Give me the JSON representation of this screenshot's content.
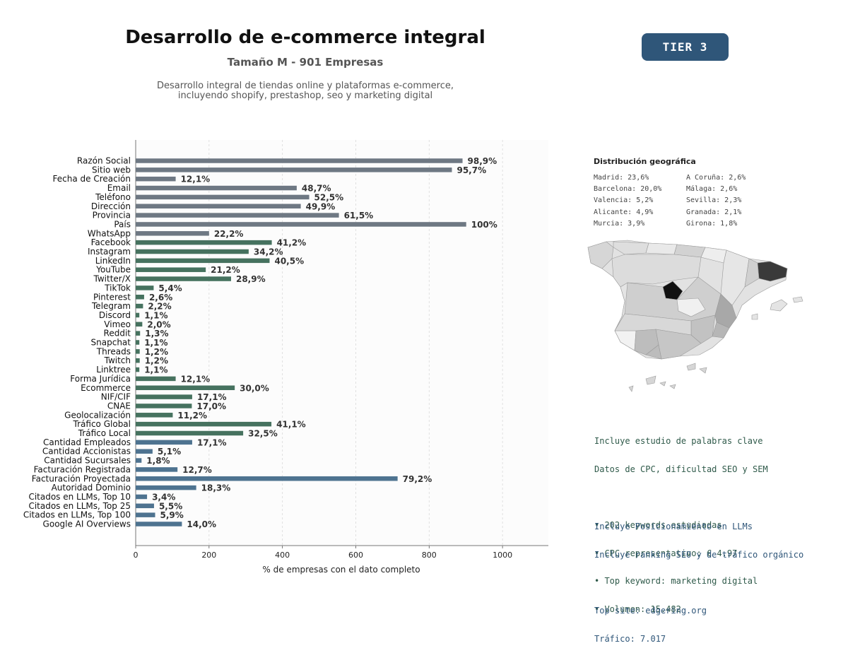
{
  "header": {
    "title": "Desarrollo de e-commerce integral",
    "subtitle": "Tamaño M - 901 Empresas",
    "description_line1": "Desarrollo integral de tiendas online y plataformas e-commerce,",
    "description_line2": "incluyendo shopify, prestashop, seo y marketing digital",
    "tier": "TIER 3"
  },
  "colors": {
    "identity": "#6e7883",
    "social": "#46725f",
    "business": "#4e7390",
    "badge": "#2f5679",
    "background_plot": "#fcfcfc"
  },
  "chart_data": {
    "type": "bar",
    "orientation": "horizontal",
    "xlabel": "% de empresas con el dato completo",
    "xlim": [
      0,
      1125
    ],
    "xticks": [
      0,
      200,
      400,
      600,
      800,
      1000
    ],
    "grid": "x-dashed",
    "categories": [
      "Razón Social",
      "Sitio web",
      "Fecha de Creación",
      "Email",
      "Teléfono",
      "Dirección",
      "Provincia",
      "País",
      "WhatsApp",
      "Facebook",
      "Instagram",
      "LinkedIn",
      "YouTube",
      "Twitter/X",
      "TikTok",
      "Pinterest",
      "Telegram",
      "Discord",
      "Vimeo",
      "Reddit",
      "Snapchat",
      "Threads",
      "Twitch",
      "Linktree",
      "Forma Jurídica",
      "Ecommerce",
      "NIF/CIF",
      "CNAE",
      "Geolocalización",
      "Tráfico Global",
      "Tráfico Local",
      "Cantidad Empleados",
      "Cantidad Accionistas",
      "Cantidad Sucursales",
      "Facturación Registrada",
      "Facturación Proyectada",
      "Autoridad Dominio",
      "Citados en LLMs, Top 10",
      "Citados en LLMs, Top 25",
      "Citados en LLMs, Top 100",
      "Google AI Overviews"
    ],
    "values": [
      891,
      862,
      109,
      439,
      473,
      450,
      554,
      901,
      200,
      371,
      308,
      365,
      191,
      260,
      49,
      23,
      20,
      10,
      18,
      12,
      10,
      11,
      11,
      10,
      109,
      270,
      154,
      153,
      101,
      370,
      293,
      154,
      46,
      16,
      114,
      714,
      165,
      31,
      50,
      53,
      126
    ],
    "labels": [
      "98,9%",
      "95,7%",
      "12,1%",
      "48,7%",
      "52,5%",
      "49,9%",
      "61,5%",
      "100%",
      "22,2%",
      "41,2%",
      "34,2%",
      "40,5%",
      "21,2%",
      "28,9%",
      "5,4%",
      "2,6%",
      "2,2%",
      "1,1%",
      "2,0%",
      "1,3%",
      "1,1%",
      "1,2%",
      "1,2%",
      "1,1%",
      "12,1%",
      "30,0%",
      "17,1%",
      "17,0%",
      "11,2%",
      "41,1%",
      "32,5%",
      "17,1%",
      "5,1%",
      "1,8%",
      "12,7%",
      "79,2%",
      "18,3%",
      "3,4%",
      "5,5%",
      "5,9%",
      "14,0%"
    ],
    "groups": [
      "identity",
      "identity",
      "identity",
      "identity",
      "identity",
      "identity",
      "identity",
      "identity",
      "identity",
      "social",
      "social",
      "social",
      "social",
      "social",
      "social",
      "social",
      "social",
      "social",
      "social",
      "social",
      "social",
      "social",
      "social",
      "social",
      "social",
      "social",
      "social",
      "social",
      "social",
      "social",
      "social",
      "business",
      "business",
      "business",
      "business",
      "business",
      "business",
      "business",
      "business",
      "business",
      "business"
    ]
  },
  "geo": {
    "title": "Distribución geográfica",
    "col1": [
      "Madrid: 23,6%",
      "Barcelona: 20,0%",
      "Valencia: 5,2%",
      "Alicante: 4,9%",
      "Murcia: 3,9%"
    ],
    "col2": [
      "A Coruña: 2,6%",
      "Málaga: 2,6%",
      "Sevilla: 2,3%",
      "Granada: 2,1%",
      "Girona: 1,8%"
    ]
  },
  "keywords": {
    "line1": "Incluye estudio de palabras clave",
    "line2": "Datos de CPC, dificultad SEO y SEM",
    "bullet1": "• 202 keywords estudiadas",
    "bullet2": "• CPC representativo: € 4.97",
    "bullet3": "• Top keyword: marketing digital",
    "bullet4": "• Volumen: 15.482"
  },
  "seo": {
    "line1": "Incluye Posicionamiento en LLMs",
    "line2": "Incluye ranking SEO y de tráfico orgánico",
    "top_site": "Top site: edgering.org",
    "traffic": "Tráfico: 7.017"
  }
}
